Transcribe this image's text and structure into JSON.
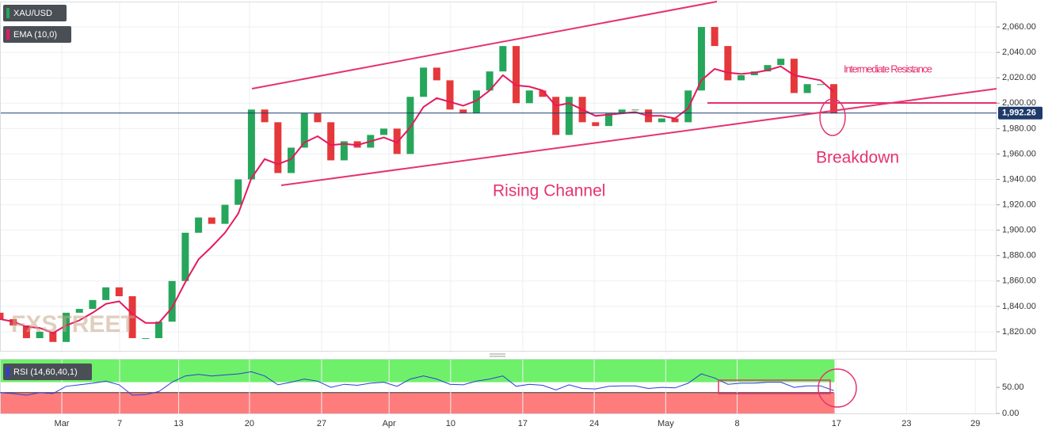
{
  "chart_data": [
    {
      "type": "candlestick",
      "title": "XAU/USD",
      "up_color": "#26a65b",
      "down_color": "#e5383b",
      "open": [
        1835,
        1830,
        1825,
        1815,
        1820,
        1812,
        1835,
        1838,
        1845,
        1855,
        1848,
        1815,
        1815,
        1828,
        1860,
        1898,
        1910,
        1905,
        1920,
        1940,
        1995,
        1985,
        1945,
        1965,
        1992,
        1985,
        1955,
        1970,
        1965,
        1975,
        1980,
        1960,
        2005,
        2028,
        2018,
        1995,
        1992,
        2010,
        2025,
        2045,
        2000,
        2010,
        2005,
        1975,
        2005,
        1985,
        1982,
        1992,
        1995,
        1995,
        1985,
        1988,
        1985,
        2010,
        2060,
        2045,
        2018,
        2022,
        2025,
        2030,
        2035,
        2008,
        2015,
        2015
      ],
      "close": [
        1830,
        1825,
        1815,
        1820,
        1812,
        1835,
        1838,
        1845,
        1855,
        1848,
        1815,
        1815,
        1828,
        1860,
        1898,
        1910,
        1905,
        1920,
        1940,
        1995,
        1985,
        1945,
        1965,
        1992,
        1985,
        1955,
        1970,
        1965,
        1975,
        1980,
        1960,
        2005,
        2028,
        2018,
        1995,
        1992,
        2010,
        2025,
        2045,
        2000,
        2010,
        2005,
        1975,
        2005,
        1985,
        1982,
        1992,
        1995,
        1995,
        1985,
        1988,
        1985,
        2010,
        2060,
        2045,
        2018,
        2022,
        2025,
        2030,
        2035,
        2008,
        2015,
        2015,
        1992
      ],
      "series": [
        {
          "name": "EMA (10,0)",
          "color": "#e5195f",
          "values": [
            1830,
            1828,
            1824,
            1823,
            1819,
            1825,
            1829,
            1835,
            1842,
            1844,
            1834,
            1827,
            1827,
            1839,
            1859,
            1877,
            1887,
            1898,
            1913,
            1941,
            1956,
            1952,
            1956,
            1969,
            1974,
            1967,
            1968,
            1967,
            1970,
            1973,
            1969,
            1981,
            1997,
            2004,
            2001,
            1998,
            2002,
            2010,
            2022,
            2014,
            2013,
            2010,
            1998,
            2000,
            1995,
            1990,
            1991,
            1992,
            1993,
            1990,
            1990,
            1988,
            1996,
            2018,
            2027,
            2024,
            2023,
            2024,
            2026,
            2029,
            2022,
            2020,
            2018,
            2009
          ]
        }
      ],
      "last_price": {
        "value": 1992.26,
        "label": "1,992.26"
      },
      "xlim": [
        0,
        75.3
      ],
      "xticks": [
        {
          "value": 4.67,
          "label": "Mar"
        },
        {
          "value": 9.04,
          "label": "7"
        },
        {
          "value": 13.5,
          "label": "13"
        },
        {
          "value": 18.85,
          "label": "20"
        },
        {
          "value": 24.3,
          "label": "27"
        },
        {
          "value": 29.4,
          "label": "Apr"
        },
        {
          "value": 34.05,
          "label": "10"
        },
        {
          "value": 39.5,
          "label": "17"
        },
        {
          "value": 44.9,
          "label": "24"
        },
        {
          "value": 50.3,
          "label": "May"
        },
        {
          "value": 55.7,
          "label": "8"
        },
        {
          "value": 63.2,
          "label": "17"
        },
        {
          "value": 68.5,
          "label": "23"
        },
        {
          "value": 73.7,
          "label": "29"
        }
      ],
      "ylim": [
        1805,
        2080
      ],
      "yticks": [
        {
          "value": 1820,
          "label": "1,820.00"
        },
        {
          "value": 1840,
          "label": "1,840.00"
        },
        {
          "value": 1860,
          "label": "1,860.00"
        },
        {
          "value": 1880,
          "label": "1,880.00"
        },
        {
          "value": 1900,
          "label": "1,900.00"
        },
        {
          "value": 1920,
          "label": "1,920.00"
        },
        {
          "value": 1940,
          "label": "1,940.00"
        },
        {
          "value": 1960,
          "label": "1,960.00"
        },
        {
          "value": 1980,
          "label": "1,980.00"
        },
        {
          "value": 2000,
          "label": "2,000.00"
        },
        {
          "value": 2020,
          "label": "2,020.00"
        },
        {
          "value": 2040,
          "label": "2,040.00"
        },
        {
          "value": 2060,
          "label": "2,060.00"
        }
      ],
      "annotations": {
        "resistance": "Intermediate  Resistance",
        "breakdown": "Breakdown",
        "channel": "Rising Channel"
      },
      "watermark": "FXSTREET"
    },
    {
      "type": "line",
      "title": "RSI (14,60,40,1)",
      "color": "#2b3fd6",
      "upper": 60,
      "lower": 40,
      "upper_color": "#6ff06a",
      "lower_color": "#ff7c7c",
      "values": [
        40,
        38,
        35,
        40,
        38,
        52,
        55,
        58,
        62,
        55,
        35,
        36,
        42,
        60,
        72,
        75,
        72,
        74,
        76,
        80,
        72,
        55,
        60,
        66,
        62,
        50,
        56,
        54,
        58,
        60,
        52,
        66,
        72,
        66,
        56,
        55,
        62,
        66,
        72,
        52,
        56,
        54,
        45,
        55,
        48,
        47,
        52,
        53,
        53,
        48,
        50,
        49,
        58,
        76,
        68,
        56,
        58,
        58,
        60,
        60,
        50,
        53,
        53,
        44
      ],
      "ylim": [
        0,
        105
      ],
      "yticks": [
        {
          "value": 0,
          "label": "0.00"
        },
        {
          "value": 50,
          "label": "50.00"
        }
      ]
    }
  ]
}
